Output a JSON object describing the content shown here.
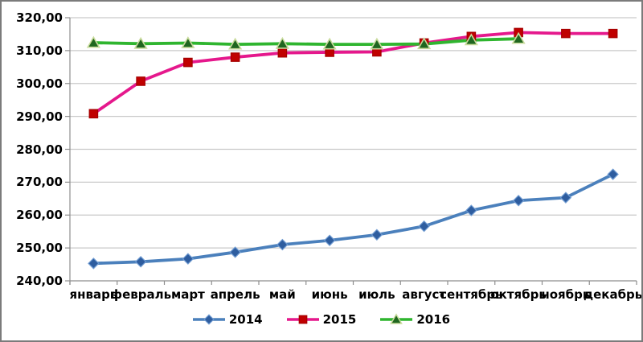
{
  "chart_data": {
    "type": "line",
    "categories": [
      "январь",
      "февраль",
      "март",
      "апрель",
      "май",
      "июнь",
      "июль",
      "август",
      "сентябрь",
      "октябрь",
      "ноябрь",
      "декабрь"
    ],
    "series": [
      {
        "name": "2014",
        "marker": "diamond",
        "line_color": "#4b80bc",
        "marker_fill": "#2e5d9f",
        "marker_stroke": "#6f9bd2",
        "values": [
          245.3,
          245.8,
          246.7,
          248.7,
          251.0,
          252.3,
          254.0,
          256.6,
          261.4,
          264.4,
          265.3,
          272.4
        ]
      },
      {
        "name": "2015",
        "marker": "square",
        "line_color": "#e5188c",
        "marker_fill": "#c00000",
        "marker_stroke": "#a50000",
        "values": [
          290.8,
          300.7,
          306.4,
          308.0,
          309.3,
          309.5,
          309.6,
          312.3,
          314.3,
          315.5,
          315.2,
          315.2
        ]
      },
      {
        "name": "2016",
        "marker": "triangle",
        "line_color": "#2fb52f",
        "marker_fill": "#1f661f",
        "marker_stroke": "#c9db9c",
        "values": [
          312.4,
          312.1,
          312.3,
          311.9,
          312.1,
          311.9,
          311.9,
          312.0,
          313.2,
          313.6,
          null,
          null
        ]
      }
    ],
    "ylim": [
      240,
      320
    ],
    "ytick_step": 10,
    "ytick_labels_top_to_bottom": [
      "320,00",
      "310,00",
      "300,00",
      "290,00",
      "280,00",
      "270,00",
      "260,00",
      "250,00",
      "240,00"
    ],
    "grid": true,
    "legend_position": "bottom",
    "colors": {
      "gridline": "#c9c9c9",
      "axis": "#8e8e8e",
      "text": "#000000",
      "background": "#ffffff",
      "frame_border": "#7b7b7b"
    }
  }
}
